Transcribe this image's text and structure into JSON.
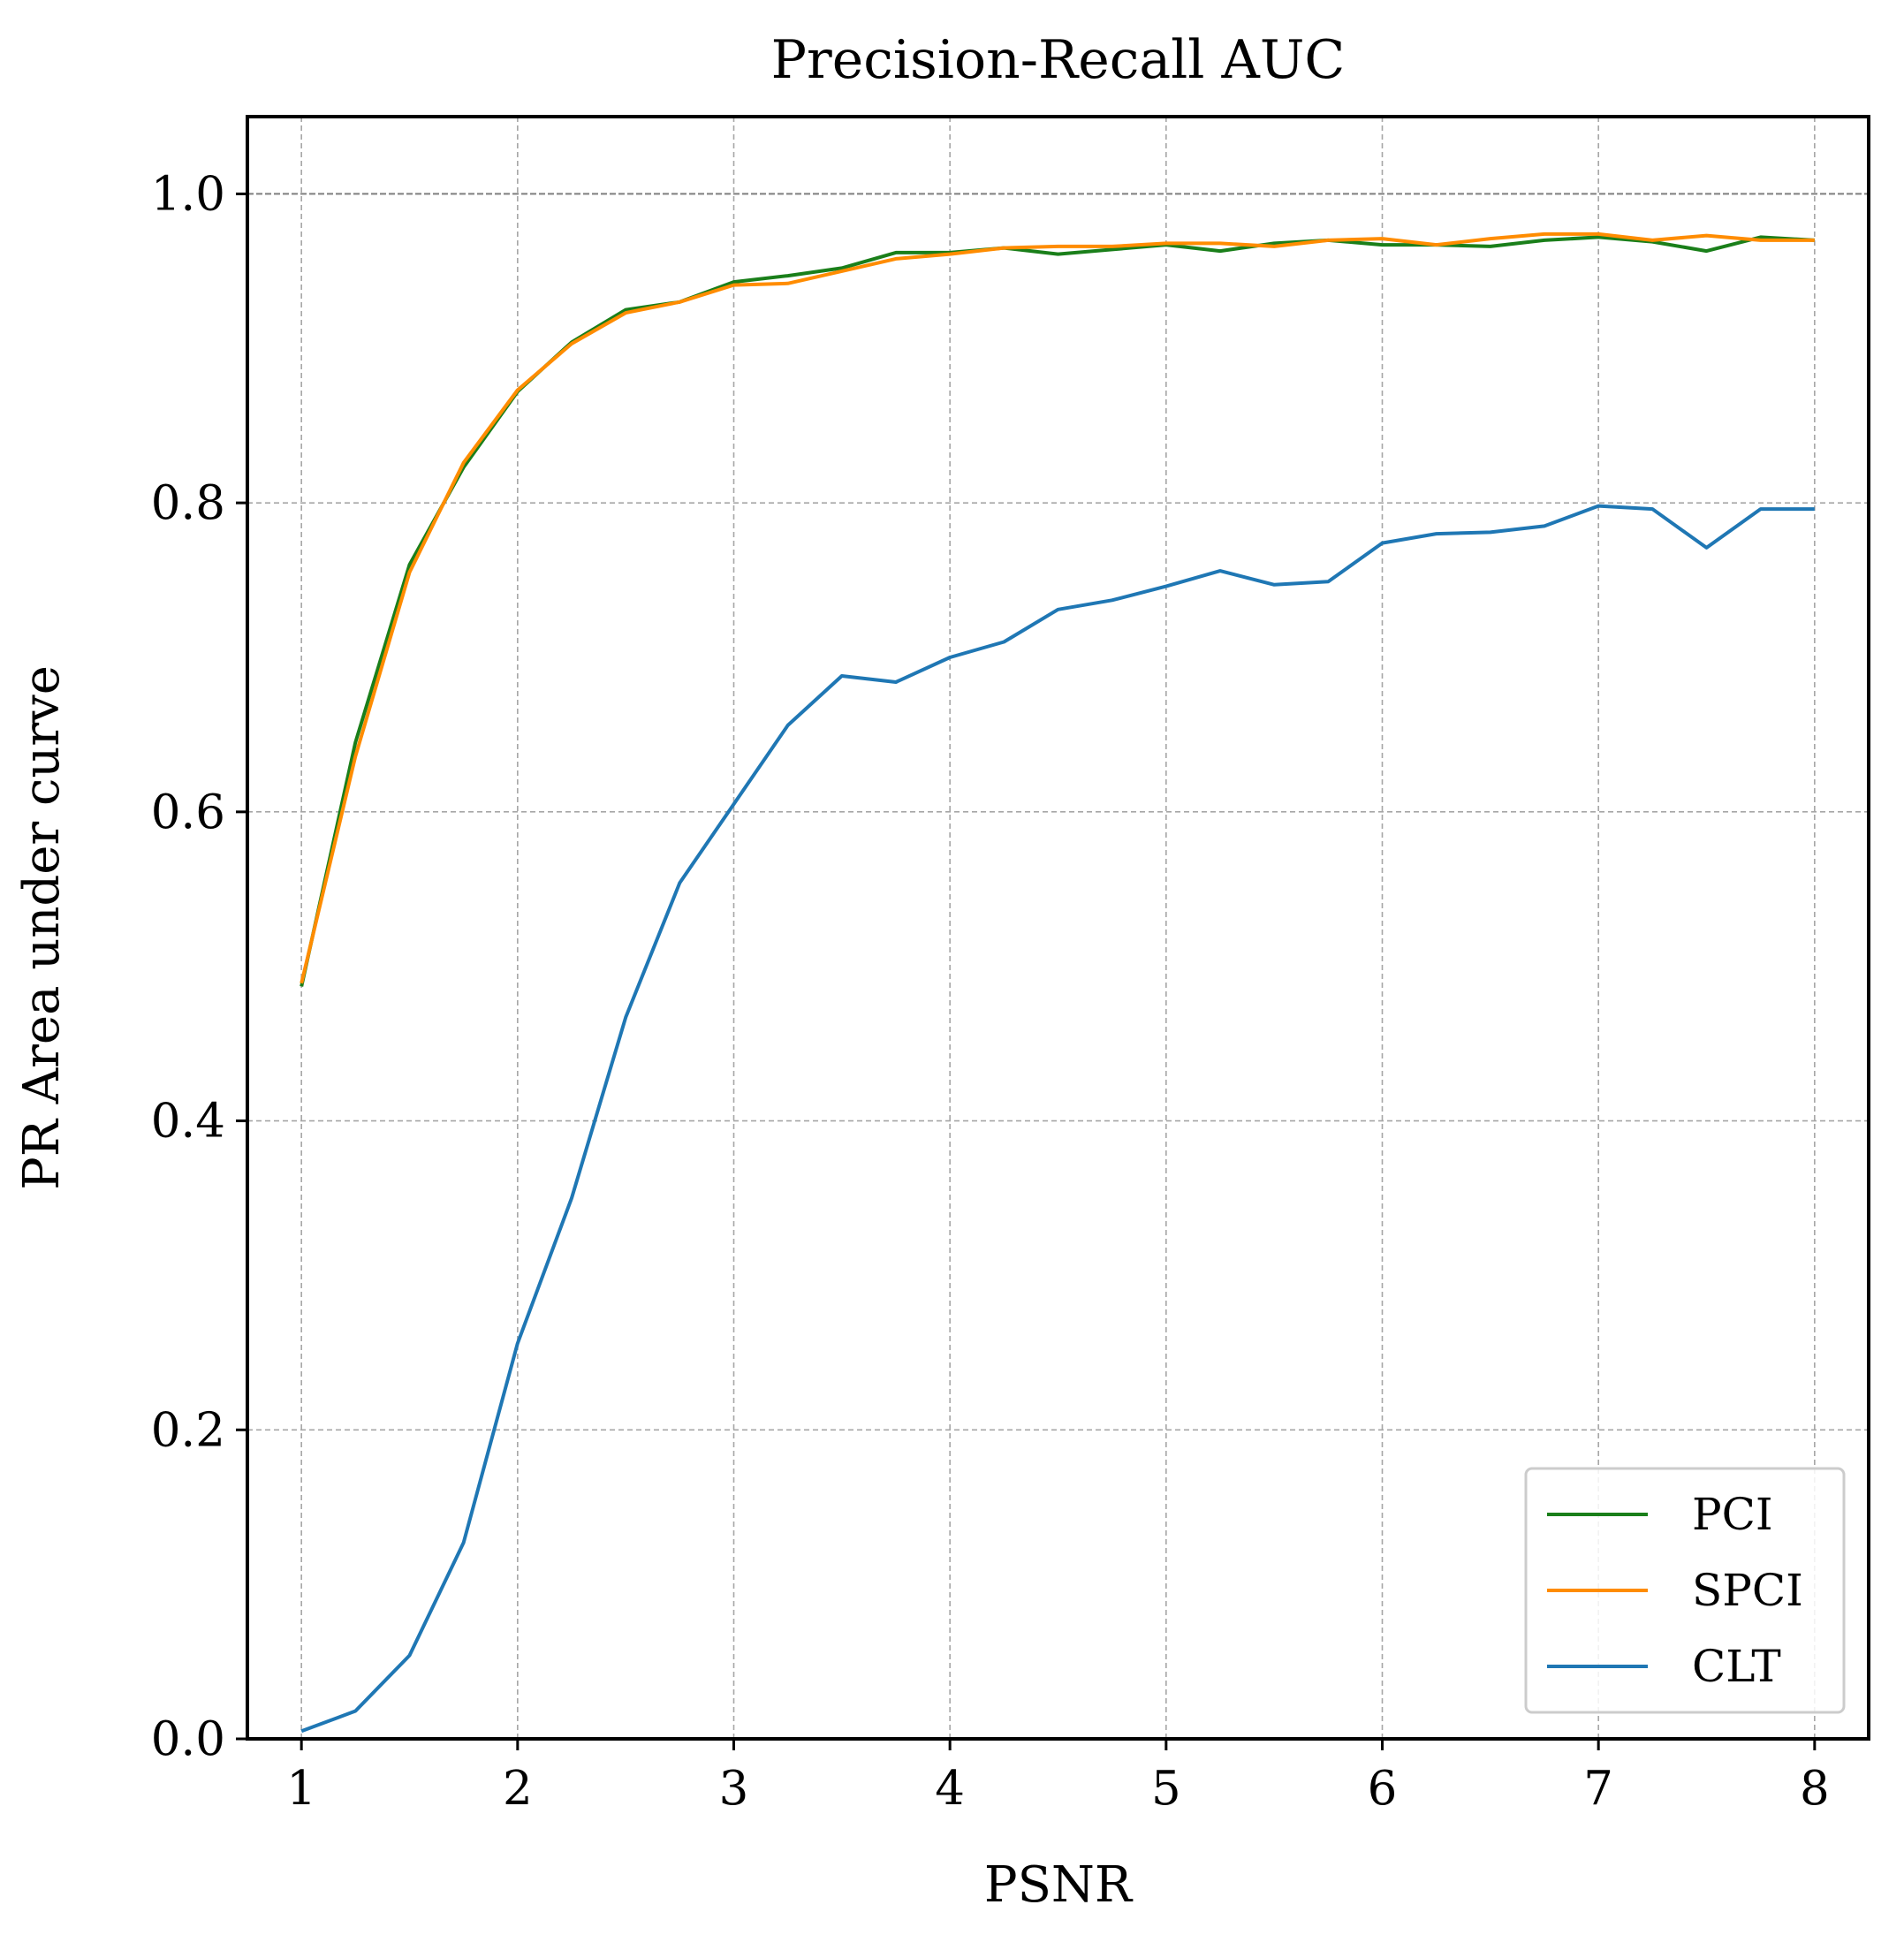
{
  "chart_data": {
    "type": "line",
    "title": "Precision-Recall AUC",
    "xlabel": "PSNR",
    "ylabel": "PR Area under curve",
    "xlim": [
      0.75,
      8.25
    ],
    "ylim": [
      0.0,
      1.05
    ],
    "xticks": [
      1,
      2,
      3,
      4,
      5,
      6,
      7,
      8
    ],
    "xtick_labels": [
      "1",
      "2",
      "3",
      "4",
      "5",
      "6",
      "7",
      "8"
    ],
    "yticks": [
      0.0,
      0.2,
      0.4,
      0.6,
      0.8,
      1.0
    ],
    "ytick_labels": [
      "0.0",
      "0.2",
      "0.4",
      "0.6",
      "0.8",
      "1.0"
    ],
    "grid": true,
    "reference_line": {
      "y": 1.0,
      "color": "#808080"
    },
    "legend_position": "lower-right",
    "x": [
      1.0,
      1.25,
      1.5,
      1.75,
      2.0,
      2.25,
      2.5,
      2.75,
      3.0,
      3.25,
      3.5,
      3.75,
      4.0,
      4.25,
      4.5,
      4.75,
      5.0,
      5.25,
      5.5,
      5.75,
      6.0,
      6.25,
      6.5,
      6.75,
      7.0,
      7.25,
      7.5,
      7.75,
      8.0
    ],
    "series": [
      {
        "name": "PCI",
        "color": "#1a7f1a",
        "values": [
          0.487,
          0.645,
          0.76,
          0.823,
          0.872,
          0.904,
          0.925,
          0.93,
          0.943,
          0.947,
          0.952,
          0.962,
          0.962,
          0.965,
          0.961,
          0.964,
          0.967,
          0.963,
          0.968,
          0.97,
          0.967,
          0.967,
          0.966,
          0.97,
          0.972,
          0.969,
          0.963,
          0.972,
          0.97
        ]
      },
      {
        "name": "SPCI",
        "color": "#ff8c00",
        "values": [
          0.489,
          0.636,
          0.755,
          0.826,
          0.873,
          0.903,
          0.923,
          0.93,
          0.941,
          0.942,
          0.95,
          0.958,
          0.961,
          0.965,
          0.966,
          0.966,
          0.968,
          0.968,
          0.966,
          0.97,
          0.971,
          0.967,
          0.971,
          0.974,
          0.974,
          0.97,
          0.973,
          0.97,
          0.97
        ]
      },
      {
        "name": "CLT",
        "color": "#1f77b4",
        "values": [
          0.005,
          0.018,
          0.054,
          0.127,
          0.256,
          0.35,
          0.467,
          0.554,
          0.605,
          0.656,
          0.688,
          0.684,
          0.7,
          0.71,
          0.731,
          0.737,
          0.746,
          0.756,
          0.747,
          0.749,
          0.774,
          0.78,
          0.781,
          0.785,
          0.798,
          0.796,
          0.771,
          0.796,
          0.796
        ]
      }
    ]
  }
}
